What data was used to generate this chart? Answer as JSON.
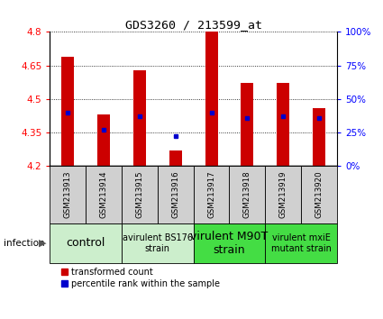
{
  "title": "GDS3260 / 213599_at",
  "samples": [
    "GSM213913",
    "GSM213914",
    "GSM213915",
    "GSM213916",
    "GSM213917",
    "GSM213918",
    "GSM213919",
    "GSM213920"
  ],
  "transformed_counts": [
    4.69,
    4.43,
    4.63,
    4.27,
    4.8,
    4.57,
    4.57,
    4.46
  ],
  "percentile_ranks": [
    40,
    27,
    37,
    22,
    40,
    36,
    37,
    36
  ],
  "ylim": [
    4.2,
    4.8
  ],
  "yticks": [
    4.2,
    4.35,
    4.5,
    4.65,
    4.8
  ],
  "right_yticks": [
    0,
    25,
    50,
    75,
    100
  ],
  "bar_color": "#cc0000",
  "dot_color": "#0000cc",
  "bar_width": 0.35,
  "group_configs": [
    {
      "indices": [
        0,
        1
      ],
      "label": "control",
      "bg": "#cceecc",
      "fontsize": 9,
      "label_fontsize": 9
    },
    {
      "indices": [
        2,
        3
      ],
      "label": "avirulent BS176\nstrain",
      "bg": "#cceecc",
      "fontsize": 7,
      "label_fontsize": 7
    },
    {
      "indices": [
        4,
        5
      ],
      "label": "virulent M90T\nstrain",
      "bg": "#44dd44",
      "fontsize": 9,
      "label_fontsize": 9
    },
    {
      "indices": [
        6,
        7
      ],
      "label": "virulent mxiE\nmutant strain",
      "bg": "#44dd44",
      "fontsize": 7,
      "label_fontsize": 7
    }
  ],
  "sample_box_bg": "#d0d0d0",
  "legend_red": "transformed count",
  "legend_blue": "percentile rank within the sample",
  "infection_label": "infection"
}
